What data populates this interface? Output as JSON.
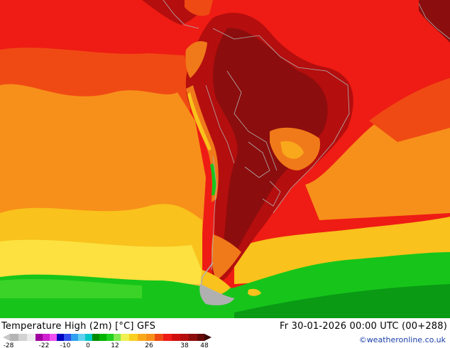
{
  "footer": {
    "title": "Temperature High (2m) [°C] GFS",
    "valid_time": "Fr 30-01-2026 00:00 UTC (00+288)",
    "credit": "©weatheronline.co.uk"
  },
  "legend": {
    "ticks": [
      "-28",
      "-22",
      "-10",
      "0",
      "12",
      "26",
      "38",
      "48"
    ]
  },
  "colors": {
    "ocean_red": "#ee1c14",
    "ocean_orange_red": "#f04a14",
    "ocean_orange": "#f7901a",
    "ocean_yellow": "#f9c21c",
    "ocean_green": "#17c51a",
    "land_dark_red": "#8c0d0d",
    "land_deep_red": "#b40e0e",
    "andes_orange": "#f07a1a",
    "border_gray": "#b0b0b0",
    "credit_blue": "#1a3fa8"
  }
}
